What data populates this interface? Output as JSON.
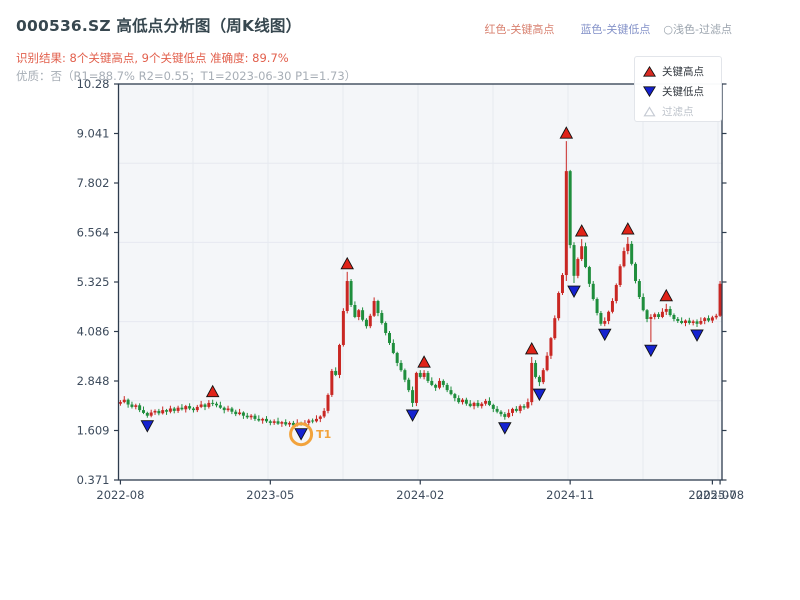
{
  "header": {
    "title": "000536.SZ 高低点分析图（周K线图）",
    "subtitle_result": "识别结果: 8个关键高点, 9个关键低点  准确度: 89.7%",
    "subtitle_quality": "优质：否（R1=88.7%  R2=0.55；T1=2023-06-30 P1=1.73）",
    "legend_top": [
      {
        "label": "红色-关键高点",
        "color": "#d8806f"
      },
      {
        "label": "蓝色-关键低点",
        "color": "#8593c9"
      },
      {
        "label": "○浅色-过滤点",
        "color": "#9aa3ad"
      }
    ]
  },
  "chart_data": {
    "type": "candlestick",
    "symbol": "000536.SZ",
    "freq": "weekly",
    "start_date": "2022-08-05",
    "title": "000536.SZ 高低点分析图（周K线图）",
    "ylim": [
      0.371,
      10.28
    ],
    "y_ticks": [
      "10.28",
      "9.041",
      "7.802",
      "6.564",
      "5.325",
      "4.086",
      "2.848",
      "1.609",
      "0.371"
    ],
    "x_ticks": [
      {
        "week": 0,
        "label": "2022-08"
      },
      {
        "week": 39,
        "label": "2023-05"
      },
      {
        "week": 78,
        "label": "2024-02"
      },
      {
        "week": 117,
        "label": "2024-11"
      },
      {
        "week": 154,
        "label": "2025-07"
      },
      {
        "week": 156,
        "label": "2025-08"
      }
    ],
    "open_first": 2.28,
    "closes": [
      2.32,
      2.38,
      2.26,
      2.2,
      2.24,
      2.12,
      2.05,
      1.98,
      2.06,
      2.1,
      2.04,
      2.12,
      2.08,
      2.16,
      2.1,
      2.18,
      2.14,
      2.22,
      2.16,
      2.12,
      2.2,
      2.26,
      2.2,
      2.3,
      2.28,
      2.24,
      2.18,
      2.12,
      2.16,
      2.08,
      2.02,
      2.06,
      1.98,
      1.94,
      1.98,
      1.9,
      1.86,
      1.9,
      1.84,
      1.8,
      1.84,
      1.78,
      1.82,
      1.76,
      1.8,
      1.74,
      1.8,
      1.78,
      1.8,
      1.86,
      1.84,
      1.9,
      1.96,
      2.1,
      2.5,
      3.1,
      3.0,
      3.75,
      4.6,
      5.35,
      4.75,
      4.45,
      4.62,
      4.38,
      4.22,
      4.48,
      4.85,
      4.55,
      4.3,
      4.05,
      3.8,
      3.55,
      3.3,
      3.12,
      2.88,
      2.62,
      2.3,
      3.05,
      2.95,
      3.05,
      2.85,
      2.75,
      2.68,
      2.85,
      2.75,
      2.62,
      2.52,
      2.42,
      2.32,
      2.38,
      2.28,
      2.22,
      2.3,
      2.22,
      2.28,
      2.35,
      2.25,
      2.15,
      2.08,
      2.02,
      1.95,
      2.05,
      2.15,
      2.1,
      2.22,
      2.18,
      2.32,
      3.3,
      2.95,
      2.82,
      3.12,
      3.48,
      3.92,
      4.42,
      5.05,
      5.5,
      8.1,
      6.25,
      5.48,
      5.9,
      6.22,
      5.7,
      5.28,
      4.9,
      4.55,
      4.28,
      4.35,
      4.58,
      4.85,
      5.25,
      5.72,
      6.1,
      6.28,
      5.78,
      5.35,
      4.95,
      4.62,
      4.4,
      4.45,
      4.52,
      4.45,
      4.58,
      4.65,
      4.5,
      4.4,
      4.35,
      4.3,
      4.36,
      4.3,
      4.34,
      4.28,
      4.35,
      4.42,
      4.36,
      4.44,
      4.48,
      5.28
    ],
    "hl_overrides": {
      "7": {
        "l": 1.93
      },
      "24": {
        "h": 2.38
      },
      "47": {
        "l": 1.73
      },
      "59": {
        "h": 5.58
      },
      "76": {
        "l": 2.2
      },
      "79": {
        "h": 3.12
      },
      "100": {
        "l": 1.88
      },
      "107": {
        "h": 3.45
      },
      "109": {
        "l": 2.72
      },
      "116": {
        "h": 8.85,
        "l": 5.35
      },
      "118": {
        "l": 5.3
      },
      "120": {
        "h": 6.4
      },
      "126": {
        "l": 4.22
      },
      "132": {
        "h": 6.45
      },
      "138": {
        "l": 3.82
      },
      "142": {
        "h": 4.78
      },
      "150": {
        "l": 4.2
      },
      "156": {
        "h": 5.35
      }
    },
    "key_highs": [
      {
        "week": 24,
        "date": "2023-01-20",
        "price": 2.38
      },
      {
        "week": 59,
        "date": "2023-09-22",
        "price": 5.58
      },
      {
        "week": 79,
        "date": "2024-02-09",
        "price": 3.12
      },
      {
        "week": 107,
        "date": "2024-08-23",
        "price": 3.45
      },
      {
        "week": 116,
        "date": "2024-10-25",
        "price": 8.85
      },
      {
        "week": 120,
        "date": "2024-11-22",
        "price": 6.4
      },
      {
        "week": 132,
        "date": "2025-02-14",
        "price": 6.45
      },
      {
        "week": 142,
        "date": "2025-04-25",
        "price": 4.78
      }
    ],
    "key_lows": [
      {
        "week": 7,
        "date": "2022-09-23",
        "price": 1.93
      },
      {
        "week": 47,
        "date": "2023-06-30",
        "price": 1.73,
        "t1": true
      },
      {
        "week": 76,
        "date": "2024-01-19",
        "price": 2.2
      },
      {
        "week": 100,
        "date": "2024-07-05",
        "price": 1.88
      },
      {
        "week": 109,
        "date": "2024-09-06",
        "price": 2.72
      },
      {
        "week": 118,
        "date": "2024-11-08",
        "price": 5.3
      },
      {
        "week": 126,
        "date": "2025-01-03",
        "price": 4.22
      },
      {
        "week": 138,
        "date": "2025-03-28",
        "price": 3.82
      },
      {
        "week": 150,
        "date": "2025-06-20",
        "price": 4.2
      }
    ],
    "t1_label": "T1",
    "legend": [
      {
        "label": "关键高点",
        "marker": "up",
        "color": "#d92b22"
      },
      {
        "label": "关键低点",
        "marker": "down",
        "color": "#1420cf"
      },
      {
        "label": "过滤点",
        "marker": "up-outline",
        "color": "#c6cbd4"
      }
    ],
    "colors": {
      "up": "#c92723",
      "down": "#1f8e3d",
      "key_high": "#e02318",
      "key_low": "#1523d0",
      "t1_ring": "#f2a33c",
      "plot_bg": "#f4f6f9",
      "grid": "#e6e9f0",
      "spine": "#2e3c4e",
      "tick_label": "#3d4b5c"
    }
  }
}
